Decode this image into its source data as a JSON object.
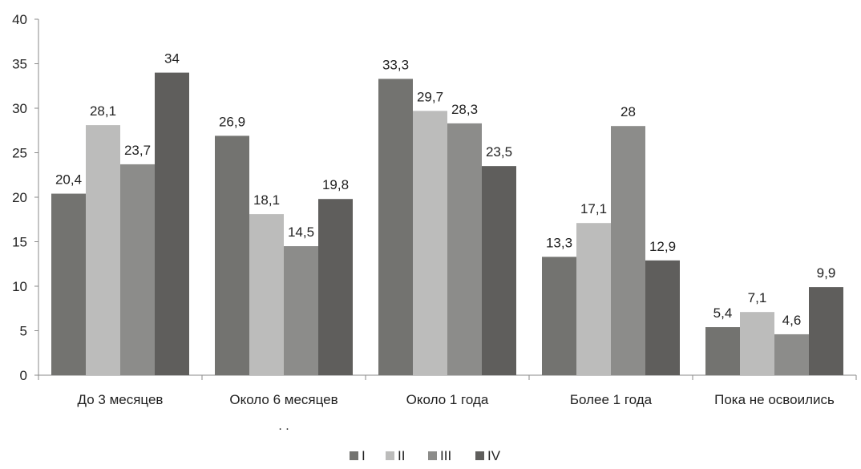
{
  "chart_data": {
    "type": "bar",
    "title": "",
    "xlabel": "",
    "ylabel": "",
    "ylim": [
      0,
      40
    ],
    "yticks": [
      0,
      5,
      10,
      15,
      20,
      25,
      30,
      35,
      40
    ],
    "grid": false,
    "legend_position": "bottom",
    "categories": [
      "До 3 месяцев",
      "Около 6 месяцев",
      "Около 1 года",
      "Более 1 года",
      "Пока не освоились"
    ],
    "category_note": ". .",
    "series": [
      {
        "name": "I",
        "color": "#737370",
        "values": [
          20.4,
          26.9,
          33.3,
          13.3,
          5.4
        ],
        "labels": [
          "20,4",
          "26,9",
          "33,3",
          "13,3",
          "5,4"
        ]
      },
      {
        "name": "II",
        "color": "#bcbcbb",
        "values": [
          28.1,
          18.1,
          29.7,
          17.1,
          7.1
        ],
        "labels": [
          "28,1",
          "18,1",
          "29,7",
          "17,1",
          "7,1"
        ]
      },
      {
        "name": "III",
        "color": "#8c8c8a",
        "values": [
          23.7,
          14.5,
          28.3,
          28,
          4.6
        ],
        "labels": [
          "23,7",
          "14,5",
          "28,3",
          "28",
          "4,6"
        ]
      },
      {
        "name": "IV",
        "color": "#5f5e5c",
        "values": [
          34,
          19.8,
          23.5,
          12.9,
          9.9
        ],
        "labels": [
          "34",
          "19,8",
          "23,5",
          "12,9",
          "9,9"
        ]
      }
    ]
  }
}
